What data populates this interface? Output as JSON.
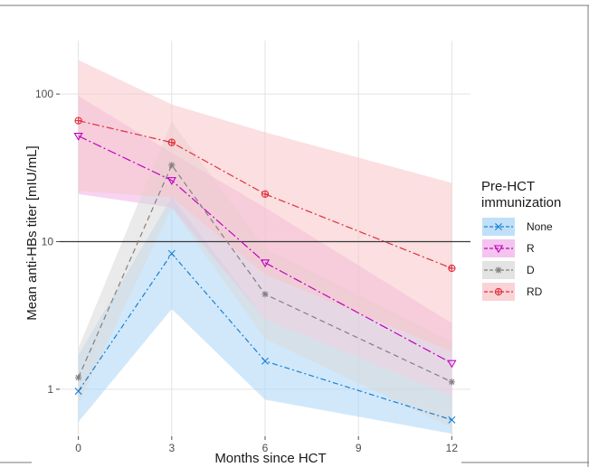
{
  "chart_data": {
    "type": "line",
    "xlabel": "Months since HCT",
    "ylabel": "Mean anti-HBs titer [mIU/mL]",
    "x": [
      0,
      3,
      6,
      12
    ],
    "x_ticks": [
      "0",
      "3",
      "6",
      "9",
      "12"
    ],
    "x_tick_values": [
      0,
      3,
      6,
      9,
      12
    ],
    "xlim": [
      -0.6,
      12.6
    ],
    "y_scale": "log",
    "y_ticks": [
      "1",
      "10",
      "100"
    ],
    "y_tick_values": [
      1,
      10,
      100
    ],
    "ylim": [
      0.48,
      230
    ],
    "reference_line_y": 10,
    "grid": true,
    "legend": {
      "title_line1": "Pre-HCT",
      "title_line2": "immunization",
      "placement": "right"
    },
    "series": [
      {
        "name": "None",
        "color": "#1a7fd4",
        "band_color": "#a9d6f5",
        "marker": "x",
        "dash": "6,3,2,3",
        "values": [
          0.97,
          8.3,
          1.55,
          0.62
        ],
        "lower": [
          0.6,
          3.5,
          0.85,
          0.5
        ],
        "upper": [
          1.7,
          20,
          3.0,
          0.9
        ]
      },
      {
        "name": "R",
        "color": "#c000c0",
        "band_color": "#f0b0e8",
        "marker": "triangle-down",
        "dash": "10,3,2,3",
        "values": [
          52,
          26,
          7.2,
          1.5
        ],
        "lower": [
          21,
          17,
          3.0,
          0.9
        ],
        "upper": [
          97,
          40,
          17,
          2.8
        ]
      },
      {
        "name": "D",
        "color": "#808080",
        "band_color": "#d9d9d9",
        "marker": "asterisk",
        "dash": "6,4",
        "values": [
          1.2,
          33,
          4.4,
          1.12
        ],
        "lower": [
          0.8,
          17,
          2.2,
          0.55
        ],
        "upper": [
          1.9,
          65,
          9.0,
          2.1
        ]
      },
      {
        "name": "RD",
        "color": "#e0303a",
        "band_color": "#f7c4c8",
        "marker": "circle-plus",
        "dash": "8,3,2,3",
        "values": [
          66,
          47,
          21,
          6.6
        ],
        "lower": [
          22,
          20,
          6.0,
          1.8
        ],
        "upper": [
          170,
          85,
          55,
          25
        ]
      }
    ]
  }
}
